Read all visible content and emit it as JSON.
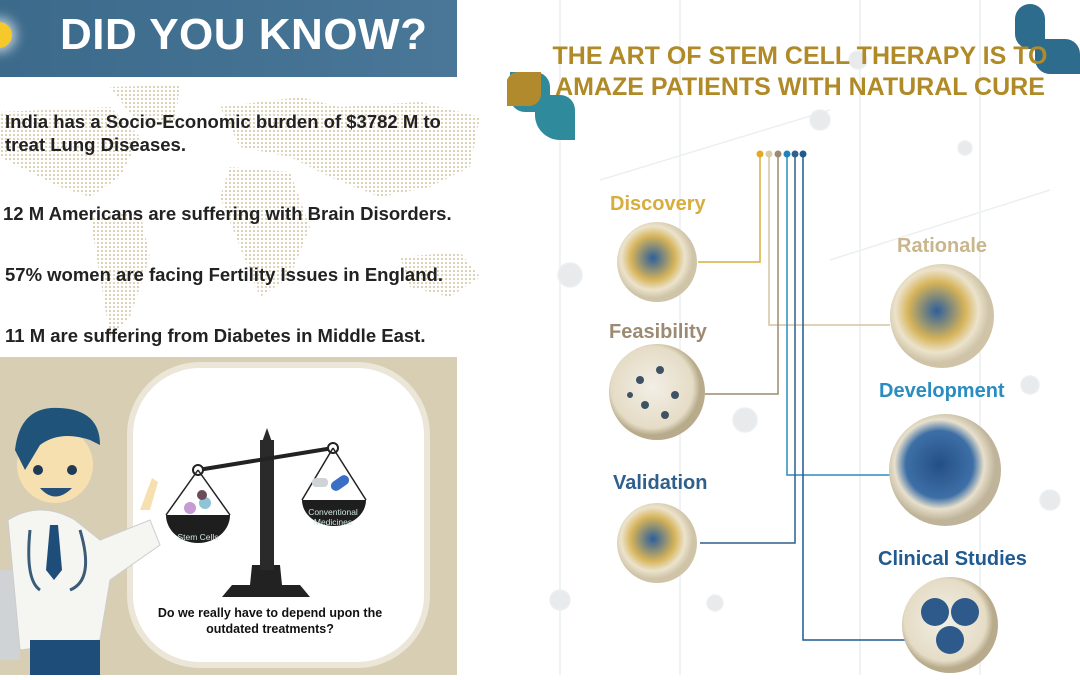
{
  "left_panel": {
    "header": {
      "title": "DID YOU KNOW?",
      "bg_color": "#3d6b8c",
      "icon": "lightbulb-icon"
    },
    "facts": [
      "India has a Socio-Economic burden of $3782 M to treat Lung Diseases.",
      "12 M Americans are suffering with Brain Disorders.",
      "57% women are facing Fertility Issues in England.",
      "11 M are suffering from Diabetes in Middle East."
    ],
    "illustration": {
      "left_pan": "Stem Cells",
      "right_pan_line1": "Conventional",
      "right_pan_line2": "Medicines",
      "question": "Do we really have to depend upon the outdated treatments?"
    }
  },
  "right_panel": {
    "title_line1": "THE ART OF STEM CELL THERAPY IS TO",
    "title_line2": "AMAZE PATIENTS WITH NATURAL CURE",
    "title_color": "#b08a27",
    "stages": [
      {
        "label": "Discovery",
        "color": "#d9ad3c"
      },
      {
        "label": "Rationale",
        "color": "#c9b68c"
      },
      {
        "label": "Feasibility",
        "color": "#9c8b72"
      },
      {
        "label": "Development",
        "color": "#2a8cc0"
      },
      {
        "label": "Validation",
        "color": "#2f5f8c"
      },
      {
        "label": "Clinical Studies",
        "color": "#1f5a90"
      }
    ]
  }
}
